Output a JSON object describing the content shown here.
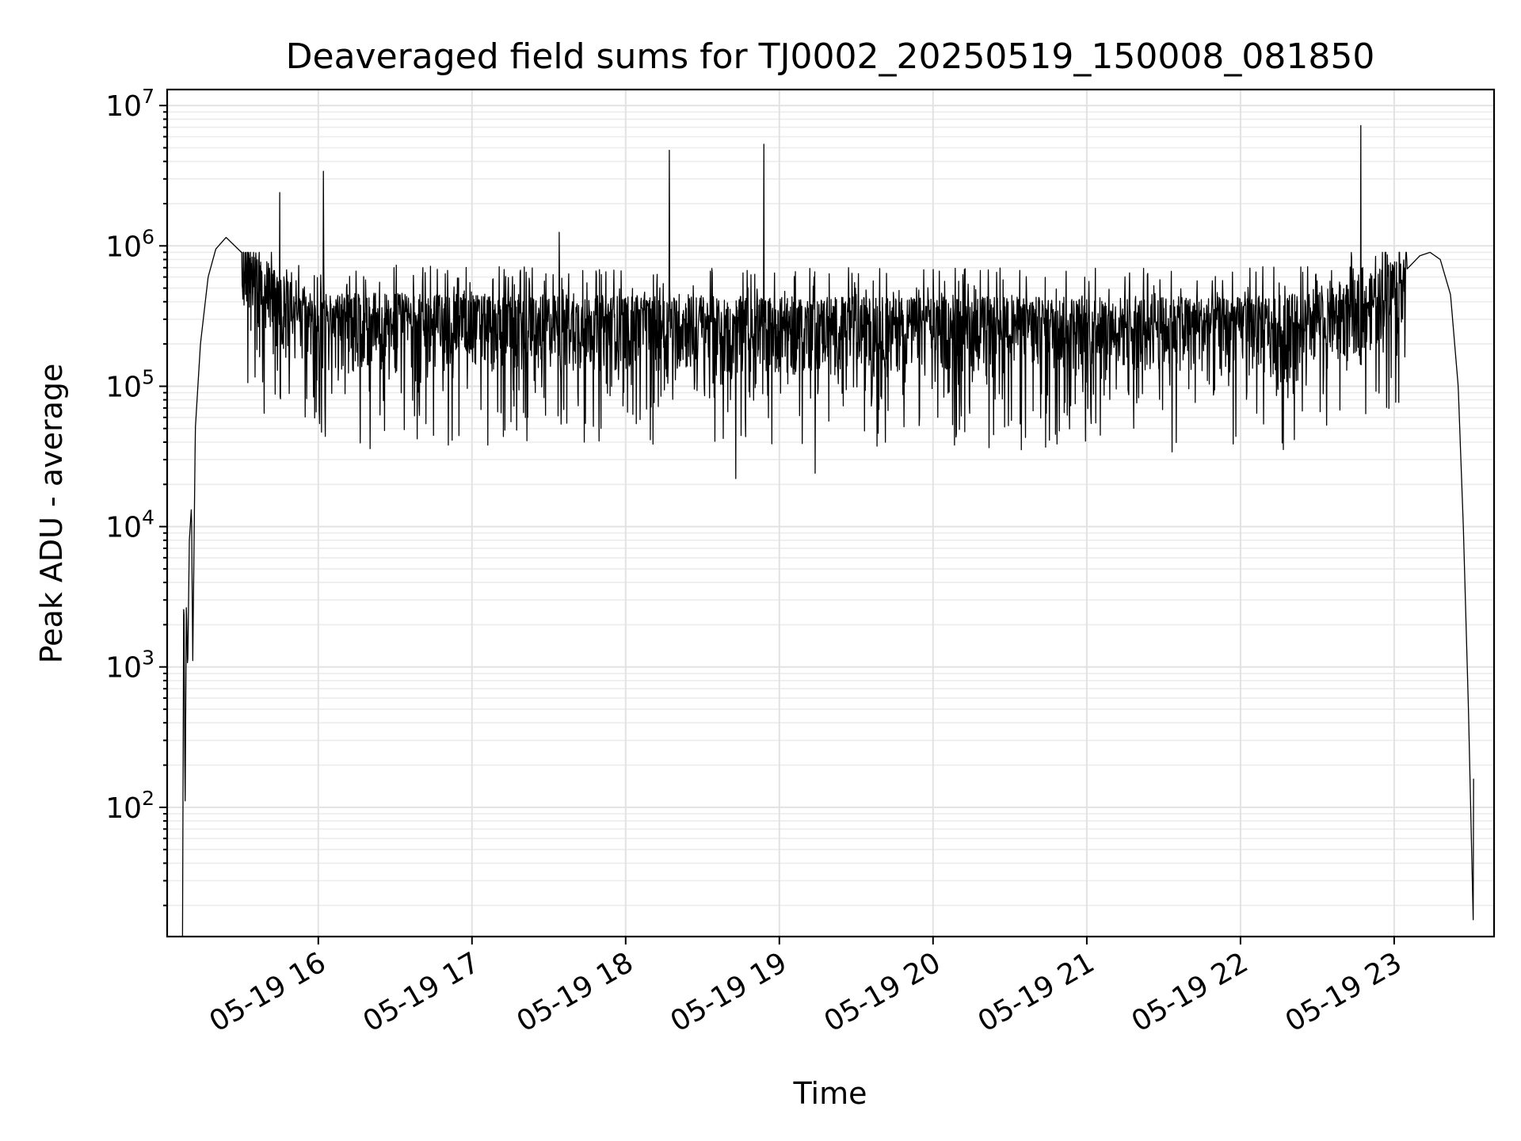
{
  "chart_data": {
    "type": "line",
    "title": "Deaveraged field sums for TJ0002_20250519_150008_081850",
    "xlabel": "Time",
    "ylabel": "Peak ADU - average",
    "yscale": "log",
    "ylim": [
      12,
      13000000
    ],
    "xlim": [
      "2025-05-19 15:01",
      "2025-05-19 23:39"
    ],
    "grid": true,
    "x_ticks": [
      {
        "value": "2025-05-19 16:00",
        "label": "05-19 16"
      },
      {
        "value": "2025-05-19 17:00",
        "label": "05-19 17"
      },
      {
        "value": "2025-05-19 18:00",
        "label": "05-19 18"
      },
      {
        "value": "2025-05-19 19:00",
        "label": "05-19 19"
      },
      {
        "value": "2025-05-19 20:00",
        "label": "05-19 20"
      },
      {
        "value": "2025-05-19 21:00",
        "label": "05-19 21"
      },
      {
        "value": "2025-05-19 22:00",
        "label": "05-19 22"
      },
      {
        "value": "2025-05-19 23:00",
        "label": "05-19 23"
      }
    ],
    "y_ticks": [
      {
        "value": 100,
        "base": "10",
        "exp": "2"
      },
      {
        "value": 1000,
        "base": "10",
        "exp": "3"
      },
      {
        "value": 10000,
        "base": "10",
        "exp": "4"
      },
      {
        "value": 100000,
        "base": "10",
        "exp": "5"
      },
      {
        "value": 1000000,
        "base": "10",
        "exp": "6"
      },
      {
        "value": 10000000,
        "base": "10",
        "exp": "7"
      }
    ],
    "series": [
      {
        "color": "#000000",
        "envelope": [
          {
            "x": "2025-05-19 15:07:00",
            "y": 12
          },
          {
            "x": "2025-05-19 15:07:30",
            "y": 5000
          },
          {
            "x": "2025-05-19 15:08:00",
            "y": 85
          },
          {
            "x": "2025-05-19 15:08:30",
            "y": 3000
          },
          {
            "x": "2025-05-19 15:09:00",
            "y": 900
          },
          {
            "x": "2025-05-19 15:09:40",
            "y": 8000
          },
          {
            "x": "2025-05-19 15:10:30",
            "y": 14000
          },
          {
            "x": "2025-05-19 15:11:00",
            "y": 1100
          },
          {
            "x": "2025-05-19 15:12:00",
            "y": 50000
          },
          {
            "x": "2025-05-19 15:14:00",
            "y": 200000
          },
          {
            "x": "2025-05-19 15:17:00",
            "y": 600000
          },
          {
            "x": "2025-05-19 15:20:00",
            "y": 950000
          },
          {
            "x": "2025-05-19 15:24:00",
            "y": 1150000
          },
          {
            "x": "2025-05-19 15:30:00",
            "y": 900000
          },
          {
            "x": "2025-05-19 15:36:00",
            "y": 600000
          },
          {
            "x": "2025-05-19 15:45:00",
            "y": 400000
          },
          {
            "x": "2025-05-19 16:00:00",
            "y": 300000
          },
          {
            "x": "2025-05-19 19:00:00",
            "y": 280000
          },
          {
            "x": "2025-05-19 22:00:00",
            "y": 280000
          },
          {
            "x": "2025-05-19 22:30:00",
            "y": 300000
          },
          {
            "x": "2025-05-19 22:50:00",
            "y": 400000
          },
          {
            "x": "2025-05-19 23:00:00",
            "y": 550000
          },
          {
            "x": "2025-05-19 23:10:00",
            "y": 850000
          },
          {
            "x": "2025-05-19 23:14:00",
            "y": 900000
          },
          {
            "x": "2025-05-19 23:18:00",
            "y": 800000
          },
          {
            "x": "2025-05-19 23:22:00",
            "y": 450000
          },
          {
            "x": "2025-05-19 23:25:00",
            "y": 100000
          },
          {
            "x": "2025-05-19 23:27:00",
            "y": 10000
          },
          {
            "x": "2025-05-19 23:29:00",
            "y": 500
          },
          {
            "x": "2025-05-19 23:31:00",
            "y": 12
          }
        ],
        "noise": {
          "x_range": [
            "2025-05-19 15:30",
            "2025-05-19 23:05"
          ],
          "low": 25000,
          "high": 900000
        },
        "spikes": [
          {
            "x": "2025-05-19 15:45:00",
            "y": 2400000
          },
          {
            "x": "2025-05-19 16:02:00",
            "y": 3400000
          },
          {
            "x": "2025-05-19 17:34:00",
            "y": 1250000
          },
          {
            "x": "2025-05-19 18:17:00",
            "y": 4800000
          },
          {
            "x": "2025-05-19 18:54:00",
            "y": 5300000
          },
          {
            "x": "2025-05-19 22:47:00",
            "y": 7200000
          },
          {
            "x": "2025-05-19 18:43:00",
            "y": 22000
          },
          {
            "x": "2025-05-19 19:14:00",
            "y": 24000
          },
          {
            "x": "2025-05-19 23:33:00",
            "y": 160
          }
        ]
      }
    ]
  }
}
